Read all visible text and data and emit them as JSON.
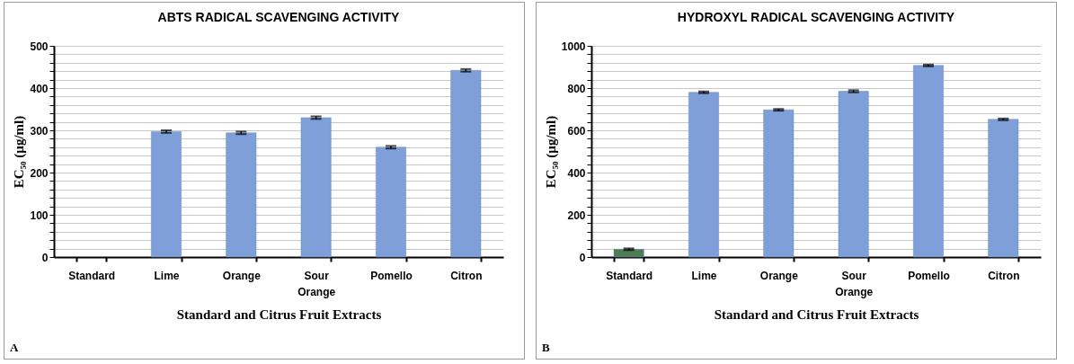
{
  "chart_data": [
    {
      "type": "bar",
      "title": "ABTS RADICAL SCAVENGING ACTIVITY",
      "xlabel": "Standard and Citrus Fruit Extracts",
      "ylabel": "EC₅₀ (µg/ml)",
      "annotations": [
        "A"
      ],
      "categories": [
        "Standard",
        "Lime",
        "Orange",
        "Sour Orange",
        "Pomello",
        "Citron"
      ],
      "values": [
        null,
        297,
        294,
        330,
        260,
        442
      ],
      "errors": [
        null,
        3,
        3,
        3,
        3,
        3
      ],
      "colors": [
        "#7f9fd8",
        "#7f9fd8",
        "#7f9fd8",
        "#7f9fd8",
        "#7f9fd8",
        "#7f9fd8"
      ],
      "ylim": [
        0,
        500
      ],
      "yticks": [
        0,
        {
          "value": 20,
          "label": null
        },
        {
          "value": 40,
          "label": null
        },
        {
          "value": 60,
          "label": null
        },
        {
          "value": 80,
          "label": null
        },
        100,
        {
          "value": 120,
          "label": null
        },
        {
          "value": 140,
          "label": null
        },
        {
          "value": 160,
          "label": null
        },
        {
          "value": 180,
          "label": null
        },
        200,
        {
          "value": 220,
          "label": null
        },
        {
          "value": 240,
          "label": null
        },
        {
          "value": 260,
          "label": null
        },
        {
          "value": 280,
          "label": null
        },
        300,
        {
          "value": 320,
          "label": null
        },
        {
          "value": 340,
          "label": null
        },
        {
          "value": 360,
          "label": null
        },
        {
          "value": 380,
          "label": null
        },
        400,
        {
          "value": 420,
          "label": null
        },
        {
          "value": 440,
          "label": null
        },
        {
          "value": 460,
          "label": null
        },
        {
          "value": 480,
          "label": null
        },
        500
      ],
      "grid": "y"
    },
    {
      "type": "bar",
      "title": "HYDROXYL RADICAL SCAVENGING ACTIVITY",
      "xlabel": "Standard and Citrus Fruit Extracts",
      "ylabel": "EC₅₀ (µg/ml)",
      "annotations": [
        "B"
      ],
      "categories": [
        "Standard",
        "Lime",
        "Orange",
        "Sour Orange",
        "Pomello",
        "Citron"
      ],
      "values": [
        37,
        780,
        697,
        785,
        907,
        652
      ],
      "errors": [
        4,
        4,
        4,
        5,
        4,
        4
      ],
      "colors": [
        "#4e7d55",
        "#7f9fd8",
        "#7f9fd8",
        "#7f9fd8",
        "#7f9fd8",
        "#7f9fd8"
      ],
      "ylim": [
        0,
        1000
      ],
      "yticks": [
        0,
        {
          "value": 40,
          "label": null
        },
        {
          "value": 80,
          "label": null
        },
        {
          "value": 120,
          "label": null
        },
        {
          "value": 160,
          "label": null
        },
        200,
        {
          "value": 240,
          "label": null
        },
        {
          "value": 280,
          "label": null
        },
        {
          "value": 320,
          "label": null
        },
        {
          "value": 360,
          "label": null
        },
        400,
        {
          "value": 440,
          "label": null
        },
        {
          "value": 480,
          "label": null
        },
        {
          "value": 520,
          "label": null
        },
        {
          "value": 560,
          "label": null
        },
        600,
        {
          "value": 640,
          "label": null
        },
        {
          "value": 680,
          "label": null
        },
        {
          "value": 720,
          "label": null
        },
        {
          "value": 760,
          "label": null
        },
        800,
        {
          "value": 840,
          "label": null
        },
        {
          "value": 880,
          "label": null
        },
        {
          "value": 920,
          "label": null
        },
        {
          "value": 960,
          "label": null
        },
        1000
      ],
      "grid": "y"
    }
  ]
}
